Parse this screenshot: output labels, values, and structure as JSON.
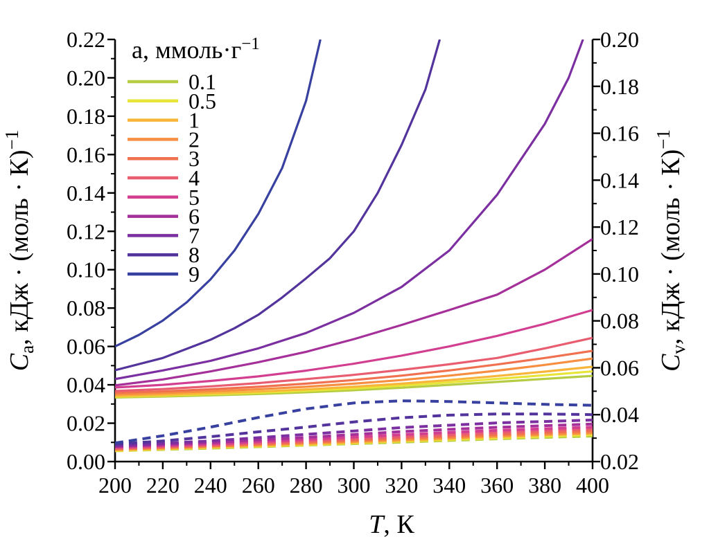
{
  "chart_data": {
    "type": "line",
    "title": "",
    "background": "#ffffff",
    "axis_color": "#000000",
    "x": {
      "label_symbol": "T",
      "label_rest": ", К",
      "range": [
        200,
        400
      ],
      "major_ticks": [
        "200",
        "220",
        "240",
        "260",
        "280",
        "300",
        "320",
        "340",
        "360",
        "380",
        "400"
      ],
      "minor_step": 10
    },
    "y_left": {
      "label_symbol": "C",
      "label_sub": "а",
      "label_unit": ", кДж · (моль · К)",
      "label_sup": "−1",
      "range": [
        0.0,
        0.22
      ],
      "major_ticks": [
        "0.00",
        "0.02",
        "0.04",
        "0.06",
        "0.08",
        "0.10",
        "0.12",
        "0.14",
        "0.16",
        "0.18",
        "0.20",
        "0.22"
      ],
      "minor_step": 0.01
    },
    "y_right": {
      "label_symbol": "C",
      "label_sub": "v",
      "label_unit": ", кДж · (моль · К)",
      "label_sup": "−1",
      "range": [
        0.02,
        0.2
      ],
      "major_ticks": [
        "0.02",
        "0.04",
        "0.06",
        "0.08",
        "0.10",
        "0.12",
        "0.14",
        "0.16",
        "0.18",
        "0.20"
      ],
      "minor_step": 0.01
    },
    "legend": {
      "title": "а, ммоль·г",
      "title_sup": "−1",
      "position": "upper-left",
      "items": [
        {
          "label": "0.1",
          "color": "#b5cc43"
        },
        {
          "label": "0.5",
          "color": "#e9e438"
        },
        {
          "label": "1",
          "color": "#f7b63a"
        },
        {
          "label": "2",
          "color": "#f78f42"
        },
        {
          "label": "3",
          "color": "#f0714f"
        },
        {
          "label": "4",
          "color": "#e95d71"
        },
        {
          "label": "5",
          "color": "#d23f91"
        },
        {
          "label": "6",
          "color": "#a5309a"
        },
        {
          "label": "7",
          "color": "#7b2fa0"
        },
        {
          "label": "8",
          "color": "#53339c"
        },
        {
          "label": "9",
          "color": "#3840a0"
        }
      ]
    },
    "series": [
      {
        "name": "Ca a=0.1",
        "a": "0.1",
        "style": "solid",
        "axis": "left",
        "color": "#b5cc43",
        "points": [
          [
            200,
            0.0334
          ],
          [
            220,
            0.0339
          ],
          [
            240,
            0.0345
          ],
          [
            260,
            0.0352
          ],
          [
            280,
            0.0361
          ],
          [
            300,
            0.0372
          ],
          [
            320,
            0.0385
          ],
          [
            340,
            0.04
          ],
          [
            360,
            0.0415
          ],
          [
            380,
            0.0431
          ],
          [
            400,
            0.0447
          ]
        ]
      },
      {
        "name": "Ca a=0.5",
        "a": "0.5",
        "style": "solid",
        "axis": "left",
        "color": "#e9e438",
        "points": [
          [
            200,
            0.0338
          ],
          [
            220,
            0.0344
          ],
          [
            240,
            0.0351
          ],
          [
            260,
            0.0359
          ],
          [
            280,
            0.0369
          ],
          [
            300,
            0.0381
          ],
          [
            320,
            0.0396
          ],
          [
            340,
            0.0413
          ],
          [
            360,
            0.0431
          ],
          [
            380,
            0.045
          ],
          [
            400,
            0.047
          ]
        ]
      },
      {
        "name": "Ca a=1",
        "a": "1",
        "style": "solid",
        "axis": "left",
        "color": "#f7b63a",
        "points": [
          [
            200,
            0.0342
          ],
          [
            220,
            0.0348
          ],
          [
            240,
            0.0356
          ],
          [
            260,
            0.0365
          ],
          [
            280,
            0.0376
          ],
          [
            300,
            0.039
          ],
          [
            320,
            0.0406
          ],
          [
            340,
            0.0425
          ],
          [
            360,
            0.0446
          ],
          [
            380,
            0.0469
          ],
          [
            400,
            0.0494
          ]
        ]
      },
      {
        "name": "Ca a=2",
        "a": "2",
        "style": "solid",
        "axis": "left",
        "color": "#f78f42",
        "points": [
          [
            200,
            0.035
          ],
          [
            220,
            0.0357
          ],
          [
            240,
            0.0366
          ],
          [
            260,
            0.0377
          ],
          [
            280,
            0.039
          ],
          [
            300,
            0.0406
          ],
          [
            320,
            0.0425
          ],
          [
            340,
            0.0448
          ],
          [
            360,
            0.0474
          ],
          [
            380,
            0.0504
          ],
          [
            400,
            0.0537
          ]
        ]
      },
      {
        "name": "Ca a=3",
        "a": "3",
        "style": "solid",
        "axis": "left",
        "color": "#f0714f",
        "points": [
          [
            200,
            0.0358
          ],
          [
            220,
            0.0366
          ],
          [
            240,
            0.0377
          ],
          [
            260,
            0.039
          ],
          [
            280,
            0.0406
          ],
          [
            300,
            0.0425
          ],
          [
            320,
            0.0448
          ],
          [
            340,
            0.0475
          ],
          [
            360,
            0.0506
          ],
          [
            380,
            0.054
          ],
          [
            400,
            0.0577
          ]
        ]
      },
      {
        "name": "Ca a=4",
        "a": "4",
        "style": "solid",
        "axis": "left",
        "color": "#e95d71",
        "points": [
          [
            200,
            0.0368
          ],
          [
            220,
            0.0378
          ],
          [
            240,
            0.0392
          ],
          [
            260,
            0.0409
          ],
          [
            280,
            0.043
          ],
          [
            300,
            0.0452
          ],
          [
            320,
            0.0478
          ],
          [
            340,
            0.0507
          ],
          [
            360,
            0.054
          ],
          [
            380,
            0.059
          ],
          [
            400,
            0.0645
          ]
        ]
      },
      {
        "name": "Ca a=5",
        "a": "5",
        "style": "solid",
        "axis": "left",
        "color": "#d23f91",
        "points": [
          [
            200,
            0.0386
          ],
          [
            220,
            0.04
          ],
          [
            240,
            0.042
          ],
          [
            260,
            0.0444
          ],
          [
            280,
            0.0474
          ],
          [
            300,
            0.051
          ],
          [
            320,
            0.0552
          ],
          [
            340,
            0.06
          ],
          [
            360,
            0.0655
          ],
          [
            380,
            0.0718
          ],
          [
            400,
            0.079
          ]
        ]
      },
      {
        "name": "Ca a=6",
        "a": "6",
        "style": "solid",
        "axis": "left",
        "color": "#a5309a",
        "points": [
          [
            200,
            0.0397
          ],
          [
            220,
            0.0428
          ],
          [
            240,
            0.047
          ],
          [
            260,
            0.0518
          ],
          [
            280,
            0.0572
          ],
          [
            300,
            0.0638
          ],
          [
            320,
            0.0712
          ],
          [
            340,
            0.079
          ],
          [
            360,
            0.087
          ],
          [
            380,
            0.1
          ],
          [
            400,
            0.116
          ]
        ]
      },
      {
        "name": "Ca a=7",
        "a": "7",
        "style": "solid",
        "axis": "left",
        "color": "#7b2fa0",
        "points": [
          [
            200,
            0.043
          ],
          [
            220,
            0.0475
          ],
          [
            240,
            0.0525
          ],
          [
            260,
            0.059
          ],
          [
            280,
            0.067
          ],
          [
            300,
            0.0775
          ],
          [
            320,
            0.091
          ],
          [
            340,
            0.11
          ],
          [
            360,
            0.139
          ],
          [
            380,
            0.176
          ],
          [
            390,
            0.2
          ],
          [
            396,
            0.22
          ]
        ]
      },
      {
        "name": "Ca a=8",
        "a": "8",
        "style": "solid",
        "axis": "left",
        "color": "#53339c",
        "points": [
          [
            200,
            0.0476
          ],
          [
            220,
            0.054
          ],
          [
            240,
            0.0635
          ],
          [
            250,
            0.0695
          ],
          [
            260,
            0.0765
          ],
          [
            270,
            0.0855
          ],
          [
            280,
            0.0955
          ],
          [
            290,
            0.106
          ],
          [
            300,
            0.12
          ],
          [
            310,
            0.14
          ],
          [
            320,
            0.165
          ],
          [
            330,
            0.194
          ],
          [
            336,
            0.22
          ]
        ]
      },
      {
        "name": "Ca a=9",
        "a": "9",
        "style": "solid",
        "axis": "left",
        "color": "#3840a0",
        "points": [
          [
            200,
            0.06
          ],
          [
            210,
            0.066
          ],
          [
            220,
            0.0735
          ],
          [
            230,
            0.083
          ],
          [
            240,
            0.095
          ],
          [
            250,
            0.11
          ],
          [
            260,
            0.129
          ],
          [
            270,
            0.153
          ],
          [
            280,
            0.188
          ],
          [
            286,
            0.22
          ]
        ]
      },
      {
        "name": "Cv a=0.1",
        "a": "0.1",
        "style": "dashed",
        "axis": "right",
        "color": "#b5cc43",
        "points": [
          [
            200,
            0.0246
          ],
          [
            240,
            0.0257
          ],
          [
            280,
            0.027
          ],
          [
            320,
            0.0283
          ],
          [
            360,
            0.0297
          ],
          [
            400,
            0.0309
          ]
        ]
      },
      {
        "name": "Cv a=0.5",
        "a": "0.5",
        "style": "dashed",
        "axis": "right",
        "color": "#e9e438",
        "points": [
          [
            200,
            0.0247
          ],
          [
            240,
            0.026
          ],
          [
            280,
            0.0272
          ],
          [
            320,
            0.0287
          ],
          [
            360,
            0.0301
          ],
          [
            400,
            0.0315
          ]
        ]
      },
      {
        "name": "Cv a=1",
        "a": "1",
        "style": "dashed",
        "axis": "right",
        "color": "#f7b63a",
        "points": [
          [
            200,
            0.025
          ],
          [
            240,
            0.0262
          ],
          [
            280,
            0.0275
          ],
          [
            320,
            0.029
          ],
          [
            360,
            0.0306
          ],
          [
            400,
            0.032
          ]
        ]
      },
      {
        "name": "Cv a=2",
        "a": "2",
        "style": "dashed",
        "axis": "right",
        "color": "#f78f42",
        "points": [
          [
            200,
            0.0252
          ],
          [
            240,
            0.0265
          ],
          [
            280,
            0.0279
          ],
          [
            320,
            0.0294
          ],
          [
            360,
            0.031
          ],
          [
            400,
            0.0324
          ]
        ]
      },
      {
        "name": "Cv a=3",
        "a": "3",
        "style": "dashed",
        "axis": "right",
        "color": "#f0714f",
        "points": [
          [
            200,
            0.0255
          ],
          [
            240,
            0.0268
          ],
          [
            280,
            0.0283
          ],
          [
            320,
            0.03
          ],
          [
            360,
            0.0316
          ],
          [
            400,
            0.0331
          ]
        ]
      },
      {
        "name": "Cv a=4",
        "a": "4",
        "style": "dashed",
        "axis": "right",
        "color": "#e95d71",
        "points": [
          [
            200,
            0.0257
          ],
          [
            240,
            0.0271
          ],
          [
            280,
            0.0288
          ],
          [
            320,
            0.0306
          ],
          [
            360,
            0.0324
          ],
          [
            400,
            0.0339
          ]
        ]
      },
      {
        "name": "Cv a=5",
        "a": "5",
        "style": "dashed",
        "axis": "right",
        "color": "#d23f91",
        "points": [
          [
            200,
            0.0261
          ],
          [
            240,
            0.0275
          ],
          [
            280,
            0.0294
          ],
          [
            320,
            0.0315
          ],
          [
            360,
            0.0333
          ],
          [
            400,
            0.0347
          ]
        ]
      },
      {
        "name": "Cv a=6",
        "a": "6",
        "style": "dashed",
        "axis": "right",
        "color": "#a5309a",
        "points": [
          [
            200,
            0.0264
          ],
          [
            240,
            0.0281
          ],
          [
            280,
            0.0303
          ],
          [
            320,
            0.0328
          ],
          [
            360,
            0.0346
          ],
          [
            400,
            0.036
          ]
        ]
      },
      {
        "name": "Cv a=7",
        "a": "7",
        "style": "dashed",
        "axis": "right",
        "color": "#7b2fa0",
        "points": [
          [
            200,
            0.0268
          ],
          [
            240,
            0.0288
          ],
          [
            280,
            0.0316
          ],
          [
            320,
            0.0345
          ],
          [
            360,
            0.0365
          ],
          [
            400,
            0.0377
          ]
        ]
      },
      {
        "name": "Cv a=8",
        "a": "8",
        "style": "dashed",
        "axis": "right",
        "color": "#53339c",
        "points": [
          [
            200,
            0.0274
          ],
          [
            220,
            0.0288
          ],
          [
            240,
            0.0306
          ],
          [
            260,
            0.0327
          ],
          [
            280,
            0.0347
          ],
          [
            300,
            0.0369
          ],
          [
            320,
            0.0387
          ],
          [
            340,
            0.0398
          ],
          [
            360,
            0.0403
          ],
          [
            380,
            0.0403
          ],
          [
            400,
            0.04
          ]
        ]
      },
      {
        "name": "Cv a=9",
        "a": "9",
        "style": "dashed",
        "axis": "right",
        "color": "#3840a0",
        "points": [
          [
            200,
            0.0279
          ],
          [
            220,
            0.031
          ],
          [
            240,
            0.0347
          ],
          [
            260,
            0.0388
          ],
          [
            280,
            0.0425
          ],
          [
            300,
            0.045
          ],
          [
            320,
            0.0459
          ],
          [
            340,
            0.0456
          ],
          [
            360,
            0.045
          ],
          [
            380,
            0.0444
          ],
          [
            400,
            0.044
          ]
        ]
      }
    ]
  }
}
